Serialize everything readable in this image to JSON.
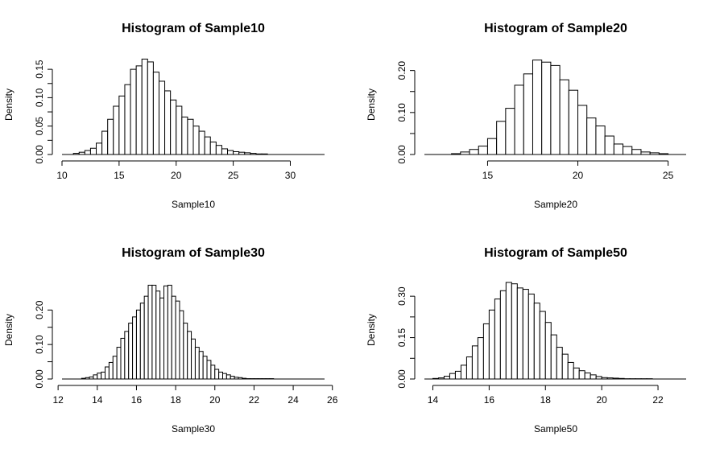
{
  "chart_data": [
    {
      "type": "bar",
      "title": "Histogram of Sample10",
      "xlabel": "Sample10",
      "ylabel": "Density",
      "xlim": [
        10,
        33
      ],
      "ylim": [
        0,
        0.17
      ],
      "xticks": [
        "10",
        "15",
        "20",
        "25",
        "30"
      ],
      "yticks": [
        "0.00",
        "0.05",
        "0.10",
        "0.15"
      ],
      "bin_start": 11,
      "bin_width": 0.5,
      "values": [
        0.002,
        0.004,
        0.007,
        0.011,
        0.02,
        0.041,
        0.062,
        0.085,
        0.103,
        0.123,
        0.15,
        0.156,
        0.168,
        0.163,
        0.145,
        0.129,
        0.112,
        0.096,
        0.085,
        0.066,
        0.062,
        0.05,
        0.041,
        0.031,
        0.022,
        0.016,
        0.01,
        0.007,
        0.005,
        0.004,
        0.003,
        0.002,
        0.001,
        0.001
      ]
    },
    {
      "type": "bar",
      "title": "Histogram of Sample20",
      "xlabel": "Sample20",
      "ylabel": "Density",
      "xlim": [
        11.5,
        26
      ],
      "ylim": [
        0,
        0.23
      ],
      "xticks": [
        "15",
        "20",
        "25"
      ],
      "yticks": [
        "0.00",
        "0.10",
        "0.20"
      ],
      "bin_start": 13,
      "bin_width": 0.5,
      "values": [
        0.002,
        0.006,
        0.012,
        0.02,
        0.038,
        0.079,
        0.11,
        0.165,
        0.192,
        0.225,
        0.22,
        0.212,
        0.178,
        0.153,
        0.117,
        0.087,
        0.068,
        0.044,
        0.025,
        0.019,
        0.012,
        0.006,
        0.004,
        0.002
      ]
    },
    {
      "type": "bar",
      "title": "Histogram of Sample30",
      "xlabel": "Sample30",
      "ylabel": "Density",
      "xlim": [
        12.2,
        25.6
      ],
      "ylim": [
        0,
        0.28
      ],
      "xticks": [
        "12",
        "14",
        "16",
        "18",
        "20",
        "22",
        "24",
        "26"
      ],
      "yticks": [
        "0.00",
        "0.10",
        "0.20"
      ],
      "bin_start": 13.2,
      "bin_width": 0.2,
      "values": [
        0.002,
        0.004,
        0.006,
        0.012,
        0.017,
        0.02,
        0.035,
        0.048,
        0.066,
        0.092,
        0.118,
        0.138,
        0.162,
        0.18,
        0.2,
        0.22,
        0.24,
        0.272,
        0.272,
        0.255,
        0.235,
        0.27,
        0.272,
        0.24,
        0.226,
        0.198,
        0.162,
        0.138,
        0.116,
        0.092,
        0.08,
        0.066,
        0.054,
        0.04,
        0.028,
        0.02,
        0.016,
        0.012,
        0.008,
        0.005,
        0.004,
        0.002,
        0.001,
        0.001,
        0.001,
        0.001,
        0.001,
        0.001,
        0.001
      ]
    },
    {
      "type": "bar",
      "title": "Histogram of Sample50",
      "xlabel": "Sample50",
      "ylabel": "Density",
      "xlim": [
        13.7,
        23
      ],
      "ylim": [
        0,
        0.35
      ],
      "xticks": [
        "14",
        "16",
        "18",
        "20",
        "22"
      ],
      "yticks": [
        "0.00",
        "0.15",
        "0.30"
      ],
      "bin_start": 14,
      "bin_width": 0.2,
      "values": [
        0.002,
        0.004,
        0.01,
        0.02,
        0.028,
        0.05,
        0.08,
        0.12,
        0.15,
        0.2,
        0.25,
        0.29,
        0.32,
        0.35,
        0.345,
        0.33,
        0.325,
        0.308,
        0.275,
        0.245,
        0.205,
        0.16,
        0.115,
        0.09,
        0.06,
        0.04,
        0.03,
        0.022,
        0.015,
        0.009,
        0.005,
        0.004,
        0.003,
        0.002,
        0.001,
        0.001,
        0.001,
        0.001,
        0.001
      ]
    }
  ]
}
